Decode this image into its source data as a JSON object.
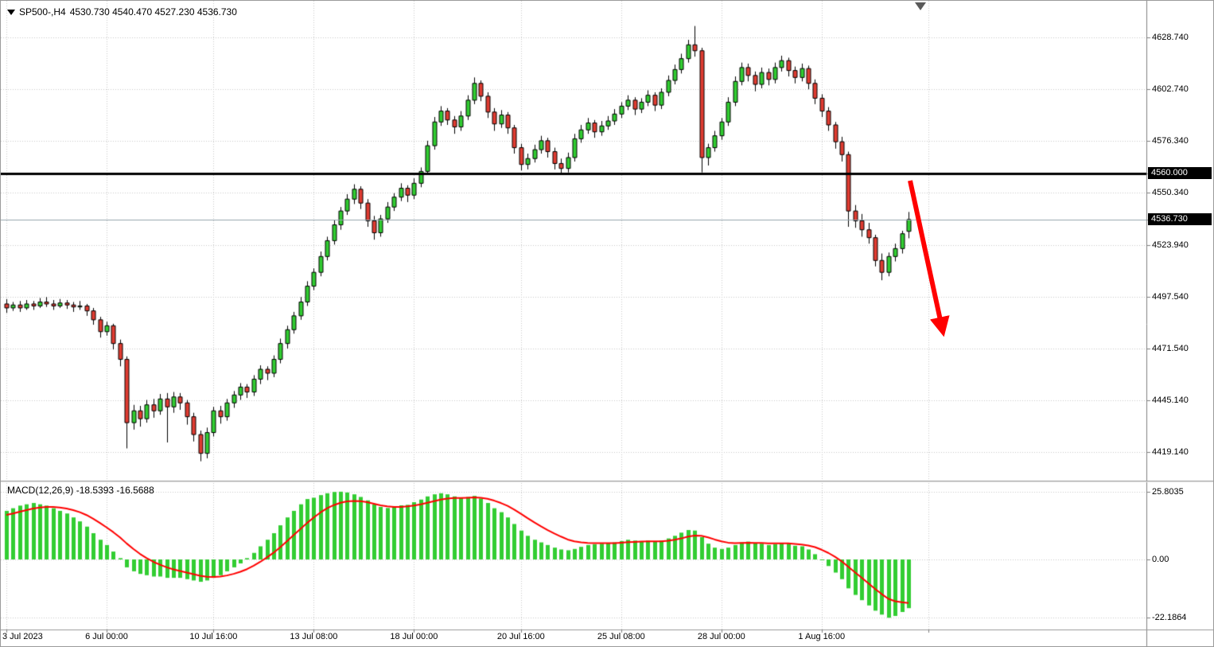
{
  "header": {
    "symbol": "SP500-,H4",
    "ohlc": "4530.730 4540.470 4527.230 4536.730"
  },
  "price_axis": {
    "labels": [
      {
        "v": 4628.74,
        "t": "4628.740"
      },
      {
        "v": 4602.74,
        "t": "4602.740"
      },
      {
        "v": 4576.34,
        "t": "4576.340"
      },
      {
        "v": 4550.34,
        "t": "4550.340"
      },
      {
        "v": 4523.94,
        "t": "4523.940"
      },
      {
        "v": 4497.54,
        "t": "4497.540"
      },
      {
        "v": 4471.54,
        "t": "4471.540"
      },
      {
        "v": 4445.14,
        "t": "4445.140"
      },
      {
        "v": 4419.14,
        "t": "4419.140"
      }
    ],
    "tags": [
      {
        "v": 4560.0,
        "t": "4560.000",
        "kind": "level"
      },
      {
        "v": 4536.73,
        "t": "4536.730",
        "kind": "bid"
      }
    ]
  },
  "time_axis": [
    {
      "bar": 0,
      "t": "3 Jul 2023"
    },
    {
      "bar": 15,
      "t": "6 Jul 00:00"
    },
    {
      "bar": 31,
      "t": "10 Jul 16:00"
    },
    {
      "bar": 46,
      "t": "13 Jul 08:00"
    },
    {
      "bar": 61,
      "t": "18 Jul 00:00"
    },
    {
      "bar": 77,
      "t": "20 Jul 16:00"
    },
    {
      "bar": 92,
      "t": "25 Jul 08:00"
    },
    {
      "bar": 107,
      "t": "28 Jul 00:00"
    },
    {
      "bar": 122,
      "t": "1 Aug 16:00"
    },
    {
      "bar": 138,
      "t": ""
    }
  ],
  "macd_panel": {
    "label": "MACD(12,26,9) -18.5393 -16.5688",
    "axis": [
      {
        "v": 25.8035,
        "t": "25.8035"
      },
      {
        "v": 0,
        "t": "0.00"
      },
      {
        "v": -22.1864,
        "t": "-22.1864"
      }
    ]
  },
  "colors": {
    "up": "#32CD32",
    "down": "#E03C32",
    "wick": "#000000",
    "body_border": "#000000",
    "grid": "#C9C9C9",
    "histogram": "#32CD32",
    "signal": "#FF0000",
    "level_line": "#000000",
    "bid_line": "#96A5AE",
    "axis_line": "#808080",
    "divider_dark": "#9A9A9A",
    "divider_light": "#E6E6E6",
    "tag_bg": "#000000",
    "tag_fg": "#FFFFFF",
    "arrow": "#FF0000"
  },
  "chart_data": [
    {
      "type": "candlestick",
      "title": "SP500-,H4",
      "last_ohlc": {
        "open": 4530.73,
        "high": 4540.47,
        "low": 4527.23,
        "close": 4536.73
      },
      "x_range": "3 Jul 2023 - 2 Aug 2023",
      "y_range": [
        4405,
        4648
      ],
      "levels": {
        "resistance": 4560.0,
        "current_bid": 4536.73
      },
      "annotations": [
        {
          "type": "arrow",
          "direction": "down-right",
          "color": "#FF0000"
        }
      ],
      "candles": [
        [
          4494.0,
          4496.5,
          4489.5,
          4492.0
        ],
        [
          4492.0,
          4495.0,
          4490.5,
          4493.5
        ],
        [
          4493.5,
          4495.5,
          4490.0,
          4492.0
        ],
        [
          4492.0,
          4496.0,
          4491.0,
          4494.0
        ],
        [
          4494.0,
          4495.5,
          4491.0,
          4493.0
        ],
        [
          4493.0,
          4497.0,
          4492.0,
          4495.0
        ],
        [
          4495.0,
          4497.5,
          4492.5,
          4494.0
        ],
        [
          4494.0,
          4496.0,
          4491.0,
          4493.0
        ],
        [
          4493.0,
          4496.5,
          4492.0,
          4494.5
        ],
        [
          4494.5,
          4496.0,
          4491.5,
          4493.5
        ],
        [
          4493.5,
          4495.0,
          4490.0,
          4492.5
        ],
        [
          4492.5,
          4495.5,
          4491.0,
          4493.0
        ],
        [
          4493.0,
          4494.0,
          4488.0,
          4490.5
        ],
        [
          4490.5,
          4492.0,
          4483.5,
          4486.0
        ],
        [
          4486.0,
          4487.5,
          4477.0,
          4480.0
        ],
        [
          4480.0,
          4485.0,
          4478.0,
          4483.0
        ],
        [
          4483.0,
          4484.0,
          4471.0,
          4474.0
        ],
        [
          4474.0,
          4476.0,
          4462.5,
          4466.0
        ],
        [
          4466.0,
          4467.5,
          4421.0,
          4434.0
        ],
        [
          4434.0,
          4443.0,
          4430.5,
          4440.0
        ],
        [
          4440.0,
          4442.5,
          4432.0,
          4436.0
        ],
        [
          4436.0,
          4445.5,
          4434.0,
          4443.0
        ],
        [
          4443.0,
          4446.0,
          4436.5,
          4440.0
        ],
        [
          4440.0,
          4448.5,
          4438.0,
          4446.0
        ],
        [
          4446.0,
          4449.0,
          4424.0,
          4442.0
        ],
        [
          4442.0,
          4449.5,
          4439.0,
          4447.0
        ],
        [
          4447.0,
          4449.0,
          4440.5,
          4444.0
        ],
        [
          4444.0,
          4445.5,
          4433.0,
          4437.0
        ],
        [
          4437.0,
          4439.0,
          4424.5,
          4428.0
        ],
        [
          4428.0,
          4430.0,
          4414.5,
          4418.5
        ],
        [
          4418.5,
          4431.5,
          4416.0,
          4429.0
        ],
        [
          4429.0,
          4442.0,
          4427.0,
          4440.0
        ],
        [
          4440.0,
          4442.5,
          4433.5,
          4437.0
        ],
        [
          4437.0,
          4446.0,
          4435.0,
          4444.0
        ],
        [
          4444.0,
          4450.0,
          4441.5,
          4448.0
        ],
        [
          4448.0,
          4454.0,
          4445.5,
          4452.0
        ],
        [
          4452.0,
          4453.5,
          4446.5,
          4449.5
        ],
        [
          4449.5,
          4458.0,
          4447.5,
          4456.0
        ],
        [
          4456.0,
          4463.0,
          4453.5,
          4461.0
        ],
        [
          4461.0,
          4462.5,
          4455.5,
          4459.0
        ],
        [
          4459.0,
          4468.0,
          4457.0,
          4466.0
        ],
        [
          4466.0,
          4476.5,
          4464.0,
          4474.0
        ],
        [
          4474.0,
          4483.0,
          4471.5,
          4481.0
        ],
        [
          4481.0,
          4490.0,
          4479.0,
          4488.0
        ],
        [
          4488.0,
          4497.5,
          4486.0,
          4495.0
        ],
        [
          4495.0,
          4505.5,
          4493.0,
          4503.0
        ],
        [
          4503.0,
          4512.0,
          4501.0,
          4510.0
        ],
        [
          4510.0,
          4520.5,
          4508.0,
          4518.0
        ],
        [
          4518.0,
          4528.0,
          4516.0,
          4526.0
        ],
        [
          4526.0,
          4536.5,
          4524.0,
          4534.0
        ],
        [
          4534.0,
          4543.0,
          4531.5,
          4541.0
        ],
        [
          4541.0,
          4549.5,
          4539.0,
          4547.0
        ],
        [
          4547.0,
          4554.5,
          4544.5,
          4552.0
        ],
        [
          4552.0,
          4553.5,
          4542.0,
          4545.0
        ],
        [
          4545.0,
          4547.0,
          4533.0,
          4536.0
        ],
        [
          4536.0,
          4538.5,
          4526.5,
          4530.0
        ],
        [
          4530.0,
          4539.0,
          4528.0,
          4537.0
        ],
        [
          4537.0,
          4545.5,
          4535.0,
          4543.0
        ],
        [
          4543.0,
          4550.0,
          4541.0,
          4548.0
        ],
        [
          4548.0,
          4555.0,
          4546.0,
          4552.5
        ],
        [
          4552.5,
          4554.0,
          4545.5,
          4549.0
        ],
        [
          4549.0,
          4557.5,
          4547.0,
          4555.0
        ],
        [
          4555.0,
          4563.0,
          4553.0,
          4561.0
        ],
        [
          4561.0,
          4576.5,
          4559.5,
          4574.0
        ],
        [
          4574.0,
          4588.5,
          4572.0,
          4586.0
        ],
        [
          4586.0,
          4594.0,
          4584.0,
          4591.5
        ],
        [
          4591.5,
          4593.0,
          4584.5,
          4587.0
        ],
        [
          4587.0,
          4589.0,
          4580.0,
          4583.5
        ],
        [
          4583.5,
          4591.5,
          4581.5,
          4589.0
        ],
        [
          4589.0,
          4599.5,
          4587.0,
          4597.0
        ],
        [
          4597.0,
          4608.5,
          4595.0,
          4605.5
        ],
        [
          4605.5,
          4607.0,
          4596.5,
          4599.0
        ],
        [
          4599.0,
          4601.0,
          4588.0,
          4591.0
        ],
        [
          4591.0,
          4593.0,
          4581.5,
          4585.0
        ],
        [
          4585.0,
          4592.0,
          4583.0,
          4589.5
        ],
        [
          4589.5,
          4591.0,
          4580.0,
          4583.0
        ],
        [
          4583.0,
          4584.5,
          4570.0,
          4573.0
        ],
        [
          4573.0,
          4575.0,
          4561.5,
          4564.5
        ],
        [
          4564.5,
          4570.0,
          4562.0,
          4567.5
        ],
        [
          4567.5,
          4574.5,
          4565.5,
          4572.0
        ],
        [
          4572.0,
          4579.0,
          4570.0,
          4576.5
        ],
        [
          4576.5,
          4578.0,
          4568.0,
          4571.0
        ],
        [
          4571.0,
          4573.0,
          4562.0,
          4565.0
        ],
        [
          4565.0,
          4567.5,
          4559.5,
          4562.5
        ],
        [
          4562.5,
          4570.5,
          4560.5,
          4568.0
        ],
        [
          4568.0,
          4580.0,
          4566.0,
          4577.5
        ],
        [
          4577.5,
          4584.5,
          4575.5,
          4582.0
        ],
        [
          4582.0,
          4588.0,
          4580.0,
          4585.5
        ],
        [
          4585.5,
          4587.0,
          4578.0,
          4581.0
        ],
        [
          4581.0,
          4586.5,
          4579.0,
          4584.0
        ],
        [
          4584.0,
          4589.0,
          4582.0,
          4586.5
        ],
        [
          4586.5,
          4592.5,
          4584.5,
          4590.0
        ],
        [
          4590.0,
          4596.0,
          4588.0,
          4594.0
        ],
        [
          4594.0,
          4599.5,
          4592.0,
          4597.0
        ],
        [
          4597.0,
          4598.5,
          4589.5,
          4592.5
        ],
        [
          4592.5,
          4598.0,
          4590.5,
          4596.0
        ],
        [
          4596.0,
          4602.0,
          4594.0,
          4599.5
        ],
        [
          4599.5,
          4601.0,
          4591.5,
          4594.5
        ],
        [
          4594.5,
          4603.0,
          4592.5,
          4601.0
        ],
        [
          4601.0,
          4609.5,
          4599.0,
          4607.0
        ],
        [
          4607.0,
          4615.0,
          4605.0,
          4612.5
        ],
        [
          4612.5,
          4620.5,
          4610.5,
          4618.0
        ],
        [
          4618.0,
          4627.5,
          4616.0,
          4625.0
        ],
        [
          4625.0,
          4634.5,
          4619.0,
          4622.0
        ],
        [
          4622.0,
          4623.5,
          4560.5,
          4568.0
        ],
        [
          4568.0,
          4575.0,
          4564.0,
          4573.0
        ],
        [
          4573.0,
          4581.5,
          4571.0,
          4579.0
        ],
        [
          4579.0,
          4588.0,
          4577.0,
          4586.0
        ],
        [
          4586.0,
          4598.5,
          4584.0,
          4596.0
        ],
        [
          4596.0,
          4609.0,
          4594.0,
          4606.5
        ],
        [
          4606.5,
          4616.0,
          4604.5,
          4613.5
        ],
        [
          4613.5,
          4615.5,
          4606.5,
          4609.5
        ],
        [
          4609.5,
          4611.5,
          4601.5,
          4605.0
        ],
        [
          4605.0,
          4613.5,
          4603.0,
          4611.0
        ],
        [
          4611.0,
          4613.0,
          4604.5,
          4607.5
        ],
        [
          4607.5,
          4616.0,
          4605.5,
          4613.5
        ],
        [
          4613.5,
          4619.5,
          4611.5,
          4617.0
        ],
        [
          4617.0,
          4618.5,
          4609.0,
          4612.0
        ],
        [
          4612.0,
          4614.0,
          4605.5,
          4608.5
        ],
        [
          4608.5,
          4615.5,
          4606.5,
          4613.0
        ],
        [
          4613.0,
          4614.5,
          4602.5,
          4605.5
        ],
        [
          4605.5,
          4607.5,
          4595.0,
          4598.0
        ],
        [
          4598.0,
          4600.0,
          4588.5,
          4591.5
        ],
        [
          4591.5,
          4593.5,
          4581.5,
          4584.5
        ],
        [
          4584.5,
          4586.0,
          4572.5,
          4576.0
        ],
        [
          4576.0,
          4578.5,
          4566.0,
          4569.5
        ],
        [
          4569.5,
          4571.0,
          4533.0,
          4541.0
        ],
        [
          4541.0,
          4544.0,
          4532.5,
          4536.0
        ],
        [
          4536.0,
          4539.5,
          4528.0,
          4531.5
        ],
        [
          4531.5,
          4535.0,
          4524.5,
          4527.5
        ],
        [
          4527.5,
          4529.0,
          4513.0,
          4516.0
        ],
        [
          4516.0,
          4519.5,
          4506.0,
          4510.0
        ],
        [
          4510.0,
          4520.0,
          4508.0,
          4518.0
        ],
        [
          4518.0,
          4524.5,
          4515.5,
          4522.0
        ],
        [
          4522.0,
          4531.0,
          4519.5,
          4529.5
        ],
        [
          4530.7,
          4540.5,
          4527.2,
          4536.7
        ]
      ]
    },
    {
      "type": "macd",
      "params": "12,26,9",
      "last_main": -18.5393,
      "last_signal": -16.5688,
      "range": [
        -22.1864,
        25.8035
      ],
      "histogram": [
        18.5,
        19.5,
        20.5,
        21.0,
        21.5,
        21.0,
        20.5,
        19.5,
        18.5,
        17.5,
        16.0,
        14.5,
        12.5,
        10.0,
        7.5,
        5.5,
        3.0,
        0.5,
        -3.0,
        -4.5,
        -5.5,
        -6.0,
        -6.5,
        -6.5,
        -7.0,
        -7.0,
        -7.0,
        -7.5,
        -8.0,
        -8.5,
        -8.0,
        -7.0,
        -6.0,
        -4.5,
        -3.0,
        -1.5,
        0.5,
        2.5,
        5.0,
        7.5,
        10.0,
        13.0,
        16.0,
        18.5,
        21.0,
        23.0,
        23.5,
        24.5,
        25.2,
        25.7,
        25.8,
        25.5,
        24.8,
        23.8,
        22.5,
        21.0,
        20.0,
        19.6,
        20.0,
        20.6,
        20.8,
        21.8,
        22.8,
        24.0,
        24.8,
        25.2,
        24.8,
        24.0,
        23.5,
        23.8,
        24.2,
        23.2,
        21.5,
        19.5,
        18.0,
        16.0,
        13.5,
        11.0,
        9.0,
        7.5,
        6.5,
        5.5,
        4.5,
        3.8,
        3.5,
        4.0,
        4.8,
        5.5,
        5.8,
        6.0,
        6.2,
        6.5,
        7.0,
        7.5,
        7.2,
        7.0,
        7.2,
        6.8,
        7.2,
        8.0,
        9.0,
        10.2,
        11.2,
        11.0,
        8.5,
        6.0,
        4.5,
        4.0,
        4.5,
        5.5,
        6.5,
        6.8,
        6.2,
        6.0,
        5.5,
        5.8,
        6.2,
        6.0,
        5.2,
        5.0,
        3.8,
        2.0,
        0.0,
        -2.5,
        -5.0,
        -7.5,
        -11.0,
        -13.5,
        -15.5,
        -17.5,
        -19.5,
        -21.0,
        -22.19,
        -21.5,
        -20.0,
        -18.54
      ],
      "signal": [
        17.0,
        17.5,
        18.2,
        18.8,
        19.4,
        19.8,
        20.0,
        20.0,
        19.8,
        19.4,
        18.8,
        18.0,
        16.9,
        15.5,
        13.9,
        12.2,
        10.4,
        8.4,
        6.1,
        4.0,
        2.1,
        0.5,
        -0.9,
        -2.0,
        -3.0,
        -3.8,
        -4.4,
        -5.0,
        -5.6,
        -6.2,
        -6.6,
        -6.7,
        -6.5,
        -6.1,
        -5.5,
        -4.7,
        -3.7,
        -2.4,
        -0.9,
        0.8,
        2.6,
        4.7,
        7.0,
        9.3,
        11.6,
        13.9,
        16.0,
        17.9,
        19.5,
        20.7,
        21.6,
        22.1,
        22.3,
        22.2,
        21.8,
        21.2,
        20.6,
        20.2,
        20.0,
        20.0,
        20.2,
        20.5,
        21.0,
        21.6,
        22.2,
        22.8,
        23.2,
        23.4,
        23.4,
        23.5,
        23.6,
        23.5,
        23.1,
        22.4,
        21.5,
        20.4,
        19.0,
        17.4,
        15.7,
        14.1,
        12.6,
        11.2,
        9.9,
        8.7,
        7.6,
        6.9,
        6.5,
        6.3,
        6.2,
        6.2,
        6.2,
        6.2,
        6.4,
        6.6,
        6.7,
        6.8,
        6.9,
        6.9,
        6.9,
        7.1,
        7.5,
        8.0,
        8.7,
        9.1,
        9.0,
        8.4,
        7.6,
        6.9,
        6.4,
        6.2,
        6.3,
        6.4,
        6.3,
        6.3,
        6.1,
        6.1,
        6.1,
        6.1,
        5.9,
        5.7,
        5.3,
        4.7,
        3.7,
        2.5,
        1.0,
        -0.7,
        -2.8,
        -4.9,
        -7.0,
        -9.1,
        -11.2,
        -13.2,
        -15.0,
        -15.9,
        -16.3,
        -16.57
      ]
    }
  ]
}
